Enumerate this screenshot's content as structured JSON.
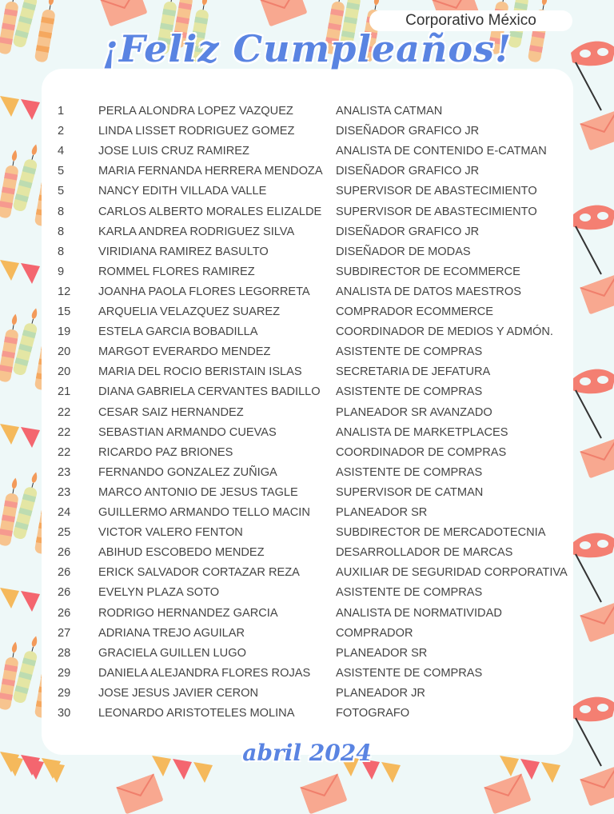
{
  "header": {
    "company": "Corporativo México",
    "title": "¡Feliz Cumpleaños!"
  },
  "footer": {
    "month": "abril 2024"
  },
  "colors": {
    "title": "#5a84e2",
    "background": "#eef8f8",
    "accent_coral": "#f47f72",
    "accent_yellow": "#f5b95c"
  },
  "birthdays": [
    {
      "day": "1",
      "name": "PERLA ALONDRA LOPEZ VAZQUEZ",
      "role": "ANALISTA CATMAN"
    },
    {
      "day": "2",
      "name": "LINDA LISSET RODRIGUEZ GOMEZ",
      "role": "DISEÑADOR GRAFICO JR"
    },
    {
      "day": "4",
      "name": "JOSE LUIS CRUZ RAMIREZ",
      "role": "ANALISTA DE CONTENIDO E-CATMAN"
    },
    {
      "day": "5",
      "name": "MARIA FERNANDA HERRERA MENDOZA",
      "role": "DISEÑADOR GRAFICO JR"
    },
    {
      "day": "5",
      "name": "NANCY EDITH VILLADA VALLE",
      "role": "SUPERVISOR DE ABASTECIMIENTO"
    },
    {
      "day": "8",
      "name": "CARLOS ALBERTO MORALES ELIZALDE",
      "role": "SUPERVISOR DE ABASTECIMIENTO"
    },
    {
      "day": "8",
      "name": "KARLA ANDREA RODRIGUEZ SILVA",
      "role": "DISEÑADOR GRAFICO JR"
    },
    {
      "day": "8",
      "name": "VIRIDIANA RAMIREZ BASULTO",
      "role": "DISEÑADOR DE MODAS"
    },
    {
      "day": "9",
      "name": "ROMMEL FLORES RAMIREZ",
      "role": "SUBDIRECTOR DE ECOMMERCE"
    },
    {
      "day": "12",
      "name": "JOANHA PAOLA FLORES LEGORRETA",
      "role": "ANALISTA DE DATOS MAESTROS"
    },
    {
      "day": "15",
      "name": "ARQUELIA VELAZQUEZ SUAREZ",
      "role": "COMPRADOR ECOMMERCE"
    },
    {
      "day": "19",
      "name": "ESTELA GARCIA BOBADILLA",
      "role": "COORDINADOR DE MEDIOS Y ADMÓN."
    },
    {
      "day": "20",
      "name": "MARGOT EVERARDO MENDEZ",
      "role": "ASISTENTE DE COMPRAS"
    },
    {
      "day": "20",
      "name": "MARIA DEL ROCIO BERISTAIN ISLAS",
      "role": "SECRETARIA DE JEFATURA"
    },
    {
      "day": "21",
      "name": "DIANA GABRIELA CERVANTES BADILLO",
      "role": "ASISTENTE DE COMPRAS"
    },
    {
      "day": "22",
      "name": "CESAR SAIZ HERNANDEZ",
      "role": "PLANEADOR SR AVANZADO"
    },
    {
      "day": "22",
      "name": "SEBASTIAN ARMANDO CUEVAS",
      "role": "ANALISTA DE MARKETPLACES"
    },
    {
      "day": "22",
      "name": "RICARDO PAZ BRIONES",
      "role": "COORDINADOR DE COMPRAS"
    },
    {
      "day": "23",
      "name": "FERNANDO GONZALEZ ZUÑIGA",
      "role": "ASISTENTE DE COMPRAS"
    },
    {
      "day": "23",
      "name": "MARCO ANTONIO DE JESUS TAGLE",
      "role": "SUPERVISOR DE CATMAN"
    },
    {
      "day": "24",
      "name": "GUILLERMO ARMANDO TELLO MACIN",
      "role": "PLANEADOR SR"
    },
    {
      "day": "25",
      "name": "VICTOR VALERO FENTON",
      "role": "SUBDIRECTOR DE MERCADOTECNIA"
    },
    {
      "day": "26",
      "name": "ABIHUD ESCOBEDO MENDEZ",
      "role": "DESARROLLADOR DE MARCAS"
    },
    {
      "day": "26",
      "name": "ERICK SALVADOR CORTAZAR REZA",
      "role": "AUXILIAR DE SEGURIDAD CORPORATIVA"
    },
    {
      "day": "26",
      "name": "EVELYN PLAZA SOTO",
      "role": "ASISTENTE DE COMPRAS"
    },
    {
      "day": "26",
      "name": "RODRIGO HERNANDEZ GARCIA",
      "role": "ANALISTA DE NORMATIVIDAD"
    },
    {
      "day": "27",
      "name": "ADRIANA TREJO AGUILAR",
      "role": "COMPRADOR"
    },
    {
      "day": "28",
      "name": "GRACIELA GUILLEN LUGO",
      "role": "PLANEADOR SR"
    },
    {
      "day": "29",
      "name": "DANIELA ALEJANDRA FLORES ROJAS",
      "role": "ASISTENTE DE COMPRAS"
    },
    {
      "day": "29",
      "name": "JOSE JESUS JAVIER CERON",
      "role": "PLANEADOR JR"
    },
    {
      "day": "30",
      "name": "LEONARDO ARISTOTELES MOLINA",
      "role": "FOTOGRAFO"
    }
  ]
}
